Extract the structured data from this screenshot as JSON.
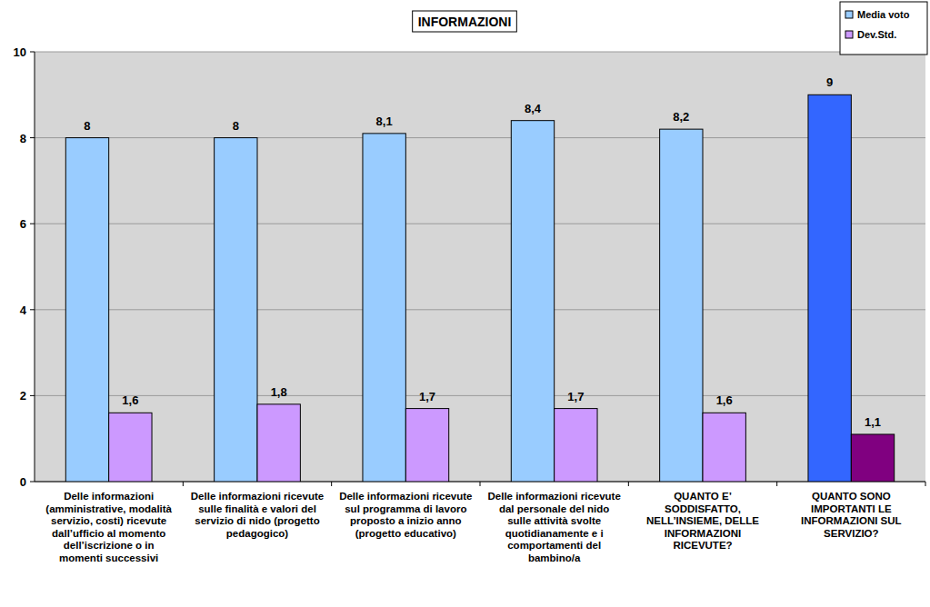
{
  "chart_data": {
    "type": "bar",
    "title": "INFORMAZIONI",
    "categories": [
      "Delle informazioni (amministrative, modalità servizio, costi) ricevute dall’ufficio al momento dell’iscrizione o in momenti successivi",
      "Delle informazioni ricevute sulle finalità e valori del servizio di nido (progetto pedagogico)",
      "Delle informazioni ricevute sul programma di lavoro proposto a inizio anno (progetto educativo)",
      "Delle informazioni ricevute dal personale del nido sulle attività svolte quotidianamente e i comportamenti del bambino/a",
      "QUANTO E’ SODDISFATTO, NELL’INSIEME, DELLE INFORMAZIONI RICEVUTE?",
      "QUANTO SONO IMPORTANTI LE INFORMAZIONI SUL SERVIZIO?"
    ],
    "series": [
      {
        "name": "Media voto",
        "color": "#99ccff",
        "colors": [
          "#99ccff",
          "#99ccff",
          "#99ccff",
          "#99ccff",
          "#99ccff",
          "#3366ff"
        ],
        "values": [
          8,
          8,
          8.1,
          8.4,
          8.2,
          9
        ],
        "value_labels": [
          "8",
          "8",
          "8,1",
          "8,4",
          "8,2",
          "9"
        ]
      },
      {
        "name": "Dev.Std.",
        "color": "#cc99ff",
        "colors": [
          "#cc99ff",
          "#cc99ff",
          "#cc99ff",
          "#cc99ff",
          "#cc99ff",
          "#800080"
        ],
        "values": [
          1.6,
          1.8,
          1.7,
          1.7,
          1.6,
          1.1
        ],
        "value_labels": [
          "1,6",
          "1,8",
          "1,7",
          "1,7",
          "1,6",
          "1,1"
        ]
      }
    ],
    "ylim": [
      0,
      10
    ],
    "yticks": [
      0,
      2,
      4,
      6,
      8,
      10
    ],
    "grid": true,
    "legend": "top-right",
    "data_labels": true
  }
}
